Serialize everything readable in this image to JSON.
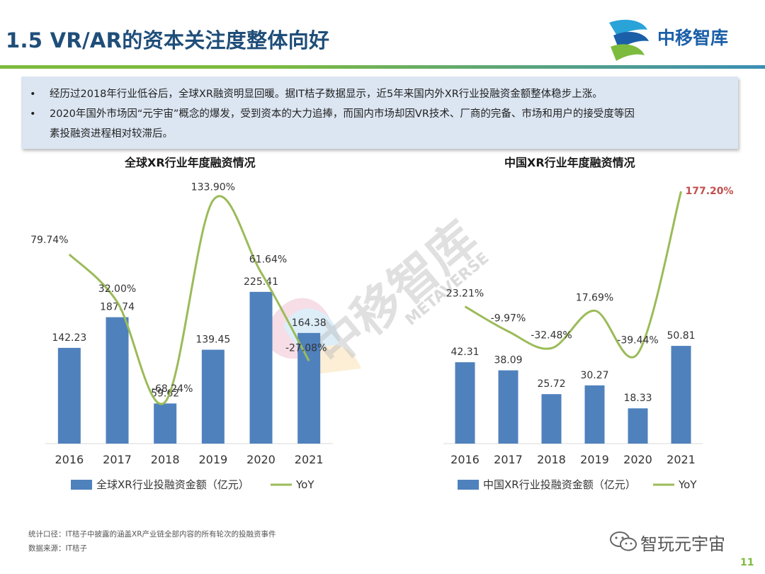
{
  "header": {
    "title": "1.5 VR/AR的资本关注度整体向好",
    "logo_text": "中移智库"
  },
  "summary": {
    "bullets": [
      "经历过2018年行业低谷后，全球XR融资明显回暖。据IT桔子数据显示，近5年来国内外XR行业投融资金额整体稳步上涨。",
      "2020年国外市场因“元宇宙”概念的爆发，受到资本的大力追捧，而国内市场却因VR技术、厂商的完备、市场和用户的接受度等因",
      "素投融资进程相对较滞后。"
    ]
  },
  "colors": {
    "bar": "#4f81bd",
    "line": "#9bbb59",
    "highlight": "#c0504d",
    "accent_green": "#7dbb3e",
    "title_blue": "#1f4e79"
  },
  "chart_data": [
    {
      "type": "bar",
      "title": "全球XR行业年度融资情况",
      "categories": [
        "2016",
        "2017",
        "2018",
        "2019",
        "2020",
        "2021"
      ],
      "series": [
        {
          "name": "全球XR行业投融资金额（亿元）",
          "kind": "bar",
          "values": [
            142.23,
            187.74,
            59.62,
            139.45,
            225.41,
            164.38
          ],
          "labels": [
            "142.23",
            "187.74",
            "59.62",
            "139.45",
            "225.41",
            "164.38"
          ]
        },
        {
          "name": "YoY",
          "kind": "line",
          "values": [
            79.74,
            32.0,
            -68.24,
            133.9,
            61.64,
            -27.08
          ],
          "labels": [
            "79.74%",
            "32.00%",
            "-68.24%",
            "133.90%",
            "61.64%",
            "-27.08%"
          ]
        }
      ],
      "ylim_bar": [
        0,
        400
      ],
      "ylim_line": [
        -110,
        160
      ]
    },
    {
      "type": "bar",
      "title": "中国XR行业年度融资情况",
      "categories": [
        "2016",
        "2017",
        "2018",
        "2019",
        "2020",
        "2021"
      ],
      "series": [
        {
          "name": "中国XR行业投融资金额（亿元）",
          "kind": "bar",
          "values": [
            42.31,
            38.09,
            25.72,
            30.27,
            18.33,
            50.81
          ],
          "labels": [
            "42.31",
            "38.09",
            "25.72",
            "30.27",
            "18.33",
            "50.81"
          ]
        },
        {
          "name": "YoY",
          "kind": "line",
          "values": [
            23.21,
            -9.97,
            -32.48,
            17.69,
            -39.44,
            177.2
          ],
          "labels": [
            "23.21%",
            "-9.97%",
            "-32.48%",
            "17.69%",
            "-39.44%",
            "177.20%"
          ]
        }
      ],
      "ylim_bar": [
        0,
        140
      ],
      "ylim_line": [
        -160,
        200
      ]
    }
  ],
  "footnotes": {
    "scope": "统计口径：IT桔子中披露的涵盖XR产业链全部内容的所有轮次的投融资事件",
    "source": "数据来源：IT桔子"
  },
  "wechat": {
    "account": "智玩元宇宙"
  },
  "watermark": {
    "text": "中移智库",
    "subtext": "METAVERSE",
    "icon": "metaverse-logo-icon"
  },
  "page_number": "11"
}
